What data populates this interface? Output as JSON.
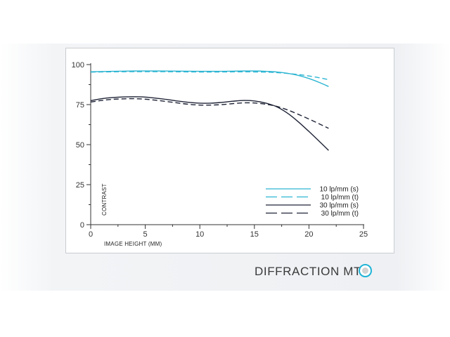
{
  "colors": {
    "background": "#ffffff",
    "band": "#eef0f3",
    "panel_border": "#c9ccd1",
    "axis": "#333333",
    "cyan": "#2db5d2",
    "dark": "#1f2436",
    "badge_ring": "#1fb3d6",
    "badge_dot": "#d2d2d2"
  },
  "footer": {
    "title": "DIFFRACTION MTF",
    "badge_icon": "circle-target-icon"
  },
  "chart_data": {
    "type": "line",
    "title": "",
    "xlabel": "IMAGE HEIGHT (MM)",
    "ylabel": "CONTRAST",
    "xlim": [
      0,
      25
    ],
    "ylim": [
      0,
      100
    ],
    "x_ticks": [
      0,
      5,
      10,
      15,
      20,
      25
    ],
    "y_ticks": [
      0,
      25,
      50,
      75,
      100
    ],
    "grid": false,
    "legend_position": "bottom-right",
    "series": [
      {
        "name": "10 lp/mm (s)",
        "color": "#2db5d2",
        "dash": "solid",
        "x": [
          0,
          2,
          4,
          6,
          8,
          10,
          12,
          14,
          15,
          16,
          17,
          18,
          19,
          20,
          21,
          21.8
        ],
        "y": [
          95.5,
          95.8,
          96.0,
          96.0,
          95.9,
          95.8,
          95.8,
          96.0,
          96.0,
          95.8,
          95.4,
          94.6,
          93.3,
          91.3,
          88.7,
          86.3
        ]
      },
      {
        "name": "10 lp/mm (t)",
        "color": "#2db5d2",
        "dash": "dashed",
        "x": [
          0,
          2,
          4,
          6,
          8,
          10,
          12,
          14,
          16,
          17,
          18,
          19,
          20,
          21,
          21.8
        ],
        "y": [
          95.3,
          95.5,
          95.6,
          95.6,
          95.5,
          95.4,
          95.4,
          95.5,
          95.3,
          95.0,
          94.5,
          93.8,
          92.9,
          91.7,
          90.6
        ]
      },
      {
        "name": "30 lp/mm (s)",
        "color": "#1f2436",
        "dash": "solid",
        "x": [
          0,
          1,
          2,
          3,
          4,
          5,
          6,
          7,
          8,
          9,
          10,
          11,
          12,
          13,
          14,
          15,
          16,
          17,
          18,
          19,
          20,
          21,
          21.8
        ],
        "y": [
          77.5,
          78.7,
          79.4,
          79.8,
          79.9,
          79.7,
          79.0,
          78.2,
          77.2,
          76.4,
          75.9,
          75.9,
          76.4,
          77.1,
          77.6,
          77.3,
          76.0,
          73.8,
          69.8,
          64.4,
          58.2,
          51.7,
          46.4
        ]
      },
      {
        "name": "30 lp/mm (t)",
        "color": "#1f2436",
        "dash": "dashed",
        "x": [
          0,
          1,
          2,
          3,
          4,
          5,
          6,
          7,
          8,
          9,
          10,
          11,
          12,
          13,
          14,
          15,
          16,
          17,
          18,
          19,
          20,
          21,
          21.8
        ],
        "y": [
          76.6,
          77.6,
          78.3,
          78.6,
          78.7,
          78.4,
          77.7,
          76.9,
          76.0,
          75.2,
          74.7,
          74.7,
          75.0,
          75.6,
          76.1,
          76.0,
          75.3,
          74.0,
          71.8,
          69.0,
          66.0,
          62.8,
          60.2
        ]
      }
    ]
  }
}
